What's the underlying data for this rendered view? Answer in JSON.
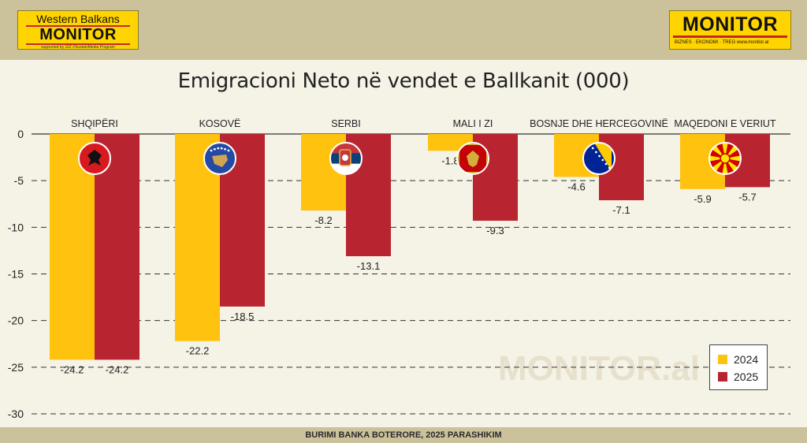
{
  "logos": {
    "left": {
      "line1": "Western Balkans",
      "line2": "MONITOR",
      "line3": "supported by GIZ #SustainMedia Program"
    },
    "right": {
      "line1": "MONITOR",
      "line2": "BIZNES · EKONOMI · TREG   www.monitor.al"
    }
  },
  "watermark": "MONITOR.al",
  "source": "BURIMI BANKA BOTERORE, 2025 PARASHIKIM",
  "colors": {
    "2024": "#ffc20e",
    "2025": "#b82530",
    "top_band": "#cbc29c",
    "plot_bg": "#f5f2e6"
  },
  "chart_data": {
    "type": "bar",
    "title": "Emigracioni Neto në vendet e Ballkanit (000)",
    "categories": [
      "SHQIPËRI",
      "KOSOVË",
      "SERBI",
      "MALI I ZI",
      "BOSNJE DHE HERCEGOVINË",
      "MAQEDONI E VERIUT"
    ],
    "flags": [
      "albania-flag-icon",
      "kosovo-flag-icon",
      "serbia-flag-icon",
      "montenegro-flag-icon",
      "bosnia-flag-icon",
      "north-macedonia-flag-icon"
    ],
    "series": [
      {
        "name": "2024",
        "values": [
          -24.2,
          -22.2,
          -8.2,
          -1.8,
          -4.6,
          -5.9
        ]
      },
      {
        "name": "2025",
        "values": [
          -24.2,
          -18.5,
          -13.1,
          -9.3,
          -7.1,
          -5.7
        ]
      }
    ],
    "value_labels": {
      "2024": [
        "-24.2",
        "-22.2",
        "-8.2",
        "-1.8",
        "-4.6",
        "-5.9"
      ],
      "2025": [
        "-24.2",
        "-18.5",
        "-13.1",
        "-9.3",
        "-7.1",
        "-5.7"
      ]
    },
    "yticks": [
      0,
      -5,
      -10,
      -15,
      -20,
      -25,
      -30
    ],
    "ytick_labels": [
      "0",
      "-5",
      "-10",
      "-15",
      "-20",
      "-25",
      "-30"
    ],
    "ylim": [
      -30,
      0
    ],
    "xlabel": "",
    "ylabel": "",
    "grid": "dashed horizontal",
    "legend": "bottom-right"
  }
}
